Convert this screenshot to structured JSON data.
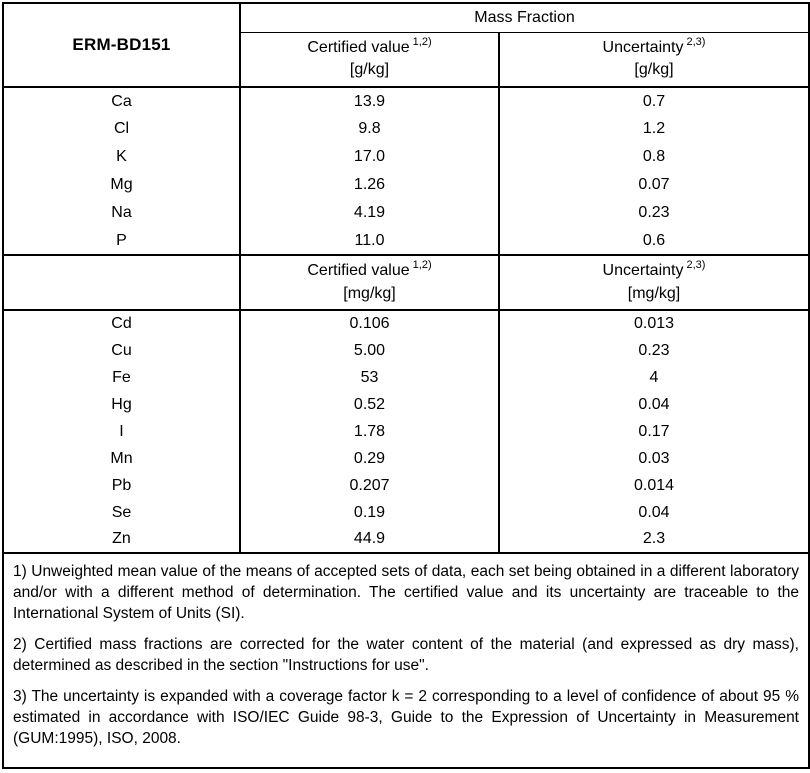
{
  "document": {
    "id_label": "ERM-BD151",
    "mass_fraction_label": "Mass Fraction"
  },
  "section_g": {
    "certified_label": "Certified value",
    "certified_sup": "1,2)",
    "certified_unit": "[g/kg]",
    "uncertainty_label": "Uncertainty",
    "uncertainty_sup": "2,3)",
    "uncertainty_unit": "[g/kg]",
    "rows": [
      {
        "element": "Ca",
        "certified": "13.9",
        "uncertainty": "0.7"
      },
      {
        "element": "Cl",
        "certified": "9.8",
        "uncertainty": "1.2"
      },
      {
        "element": "K",
        "certified": "17.0",
        "uncertainty": "0.8"
      },
      {
        "element": "Mg",
        "certified": "1.26",
        "uncertainty": "0.07"
      },
      {
        "element": "Na",
        "certified": "4.19",
        "uncertainty": "0.23"
      },
      {
        "element": "P",
        "certified": "11.0",
        "uncertainty": "0.6"
      }
    ]
  },
  "section_mg": {
    "certified_label": "Certified value",
    "certified_sup": "1,2)",
    "certified_unit": "[mg/kg]",
    "uncertainty_label": "Uncertainty",
    "uncertainty_sup": "2,3)",
    "uncertainty_unit": "[mg/kg]",
    "rows": [
      {
        "element": "Cd",
        "certified": "0.106",
        "uncertainty": "0.013"
      },
      {
        "element": "Cu",
        "certified": "5.00",
        "uncertainty": "0.23"
      },
      {
        "element": "Fe",
        "certified": "53",
        "uncertainty": "4"
      },
      {
        "element": "Hg",
        "certified": "0.52",
        "uncertainty": "0.04"
      },
      {
        "element": "I",
        "certified": "1.78",
        "uncertainty": "0.17"
      },
      {
        "element": "Mn",
        "certified": "0.29",
        "uncertainty": "0.03"
      },
      {
        "element": "Pb",
        "certified": "0.207",
        "uncertainty": "0.014"
      },
      {
        "element": "Se",
        "certified": "0.19",
        "uncertainty": "0.04"
      },
      {
        "element": "Zn",
        "certified": "44.9",
        "uncertainty": "2.3"
      }
    ]
  },
  "footnotes": [
    "1) Unweighted mean value of the means of accepted sets of data, each set being obtained in a different laboratory and/or with a different method of determination. The certified value and its uncertainty are traceable to the International System of Units (SI).",
    "2) Certified mass fractions are corrected for the water content of the material (and expressed as dry mass), determined as described in the section \"Instructions for use\".",
    "3) The uncertainty is  expanded  with a coverage factor k = 2 corresponding to a level of confidence of about 95 % estimated in accordance with ISO/IEC Guide 98-3, Guide to the Expression of Uncertainty in Measurement (GUM:1995), ISO, 2008."
  ],
  "colors": {
    "border": "#000000",
    "text": "#000000",
    "background": "#ffffff"
  }
}
